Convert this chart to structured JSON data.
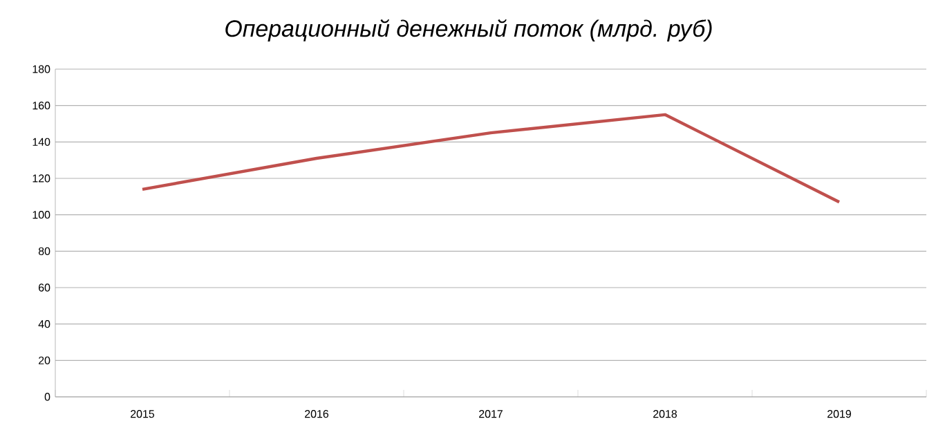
{
  "chart_data": {
    "type": "line",
    "title": "Операционный денежный поток (млрд. руб)",
    "categories": [
      "2015",
      "2016",
      "2017",
      "2018",
      "2019"
    ],
    "series": [
      {
        "color": "#c0504d",
        "values": [
          114,
          131,
          145,
          155,
          107
        ]
      }
    ],
    "ylim": [
      0,
      180
    ],
    "yticks": [
      0,
      20,
      40,
      60,
      80,
      100,
      120,
      140,
      160,
      180
    ],
    "grid": "y",
    "marker": "none",
    "line_style": "solid"
  }
}
